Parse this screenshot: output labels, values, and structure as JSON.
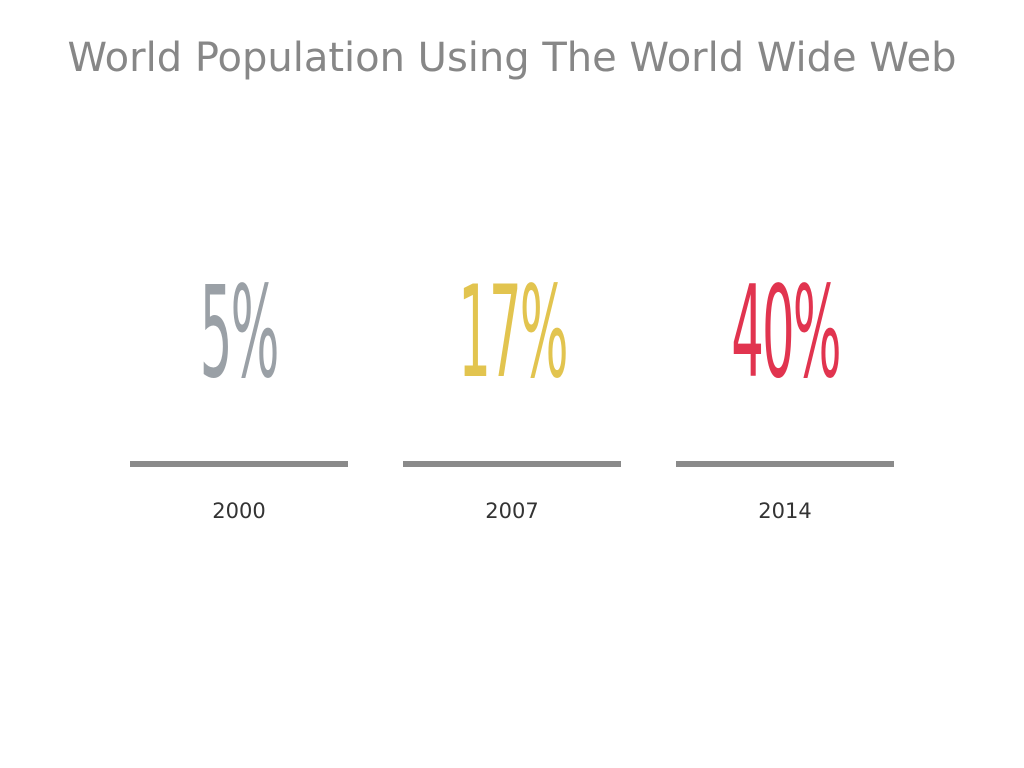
{
  "title": "World Population Using The World Wide Web",
  "stats": [
    {
      "value": "5%",
      "year": "2000",
      "color": "#9aa0a6"
    },
    {
      "value": "17%",
      "year": "2007",
      "color": "#e2c44f"
    },
    {
      "value": "40%",
      "year": "2014",
      "color": "#e1344f"
    }
  ],
  "rule_color": "#8a8a8a"
}
